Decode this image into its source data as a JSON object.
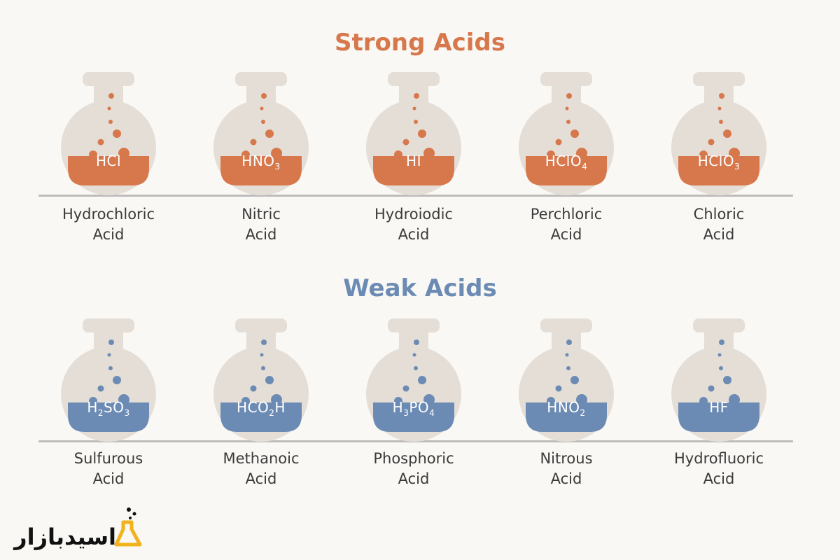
{
  "strong": {
    "title": "Strong Acids",
    "color": "#d7784c",
    "items": [
      {
        "formula": [
          "HCl"
        ],
        "name1": "Hydrochloric",
        "name2": "Acid"
      },
      {
        "formula": [
          "HNO",
          "3"
        ],
        "name1": "Nitric",
        "name2": "Acid"
      },
      {
        "formula": [
          "HI"
        ],
        "name1": "Hydroiodic",
        "name2": "Acid"
      },
      {
        "formula": [
          "HClO",
          "4"
        ],
        "name1": "Perchloric",
        "name2": "Acid"
      },
      {
        "formula": [
          "HClO",
          "3"
        ],
        "name1": "Chloric",
        "name2": "Acid"
      }
    ]
  },
  "weak": {
    "title": "Weak Acids",
    "color": "#6c8bb4",
    "items": [
      {
        "formula": [
          "H",
          "2",
          "SO",
          "3"
        ],
        "name1": "Sulfurous",
        "name2": "Acid"
      },
      {
        "formula": [
          "HCO",
          "2",
          "H"
        ],
        "name1": "Methanoic",
        "name2": "Acid"
      },
      {
        "formula": [
          "H",
          "3",
          "PO",
          "4"
        ],
        "name1": "Phosphoric",
        "name2": "Acid"
      },
      {
        "formula": [
          "HNO",
          "2"
        ],
        "name1": "Nitrous",
        "name2": "Acid"
      },
      {
        "formula": [
          "HF"
        ],
        "name1": "Hydrofluoric",
        "name2": "Acid"
      }
    ]
  },
  "logo": {
    "text": "اسیدبازار",
    "color": "#111111",
    "accent": "#f2b21c"
  },
  "flask_color": "#e4ded6"
}
